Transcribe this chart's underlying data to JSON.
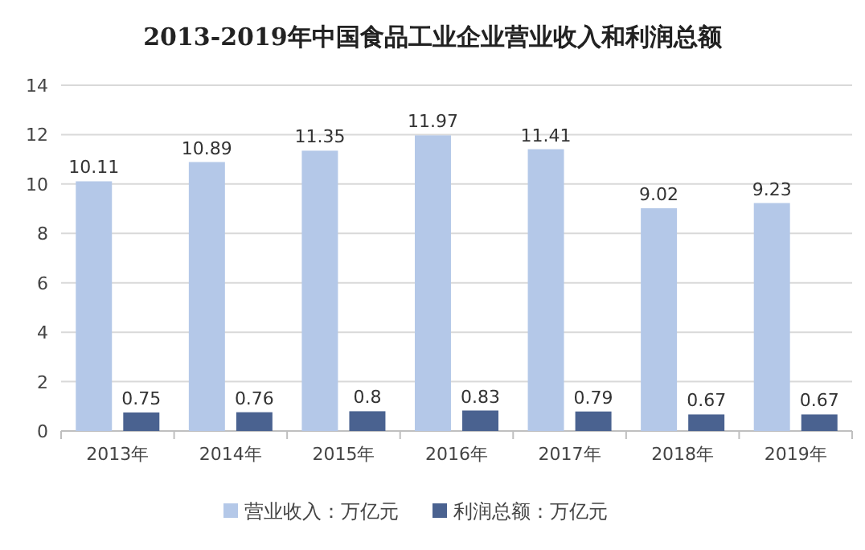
{
  "chart_data": {
    "type": "bar",
    "title": "2013-2019年中国食品工业企业营业收入和利润总额",
    "categories": [
      "2013年",
      "2014年",
      "2015年",
      "2016年",
      "2017年",
      "2018年",
      "2019年"
    ],
    "series": [
      {
        "name": "营业收入：万亿元",
        "color": "#b4c8e8",
        "values": [
          10.11,
          10.89,
          11.35,
          11.97,
          11.41,
          9.02,
          9.23
        ]
      },
      {
        "name": "利润总额：万亿元",
        "color": "#4a6290",
        "values": [
          0.75,
          0.76,
          0.8,
          0.83,
          0.79,
          0.67,
          0.67
        ]
      }
    ],
    "ylim": [
      0,
      14
    ],
    "yticks": [
      0,
      2,
      4,
      6,
      8,
      10,
      12,
      14
    ],
    "grid": "y",
    "data_labels": true,
    "legend": "bottom"
  }
}
